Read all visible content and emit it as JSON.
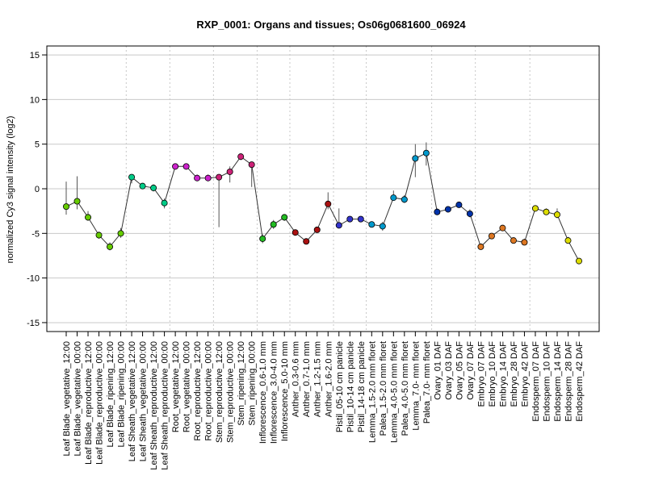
{
  "chart_data": {
    "type": "line",
    "title": "RXP_0001: Organs and tissues; Os06g0681600_06924",
    "xlabel": "",
    "ylabel": "normalized Cy3 signal intensity (log2)",
    "ylim": [
      -16,
      16
    ],
    "yticks": [
      -15,
      -10,
      -5,
      0,
      5,
      10,
      15
    ],
    "grid": "horizontal lines at y ticks; dotted vertical separators between tissue groups",
    "categories": [
      "Leaf Blade_vegetative_12:00",
      "Leaf Blade_vegetative_00:00",
      "Leaf Blade_reproductive_12:00",
      "Leaf Blade_reproductive_00:00",
      "Leaf Blade_ripening_12:00",
      "Leaf Blade_ripening_00:00",
      "Leaf Sheath_vegetative_12:00",
      "Leaf Sheath_vegetative_00:00",
      "Leaf Sheath_reproductive_12:00",
      "Leaf Sheath_reproductive_00:00",
      "Root_vegetative_12:00",
      "Root_vegetative_00:00",
      "Root_reproductive_12:00",
      "Root_reproductive_00:00",
      "Stem_reproductive_12:00",
      "Stem_reproductive_00:00",
      "Stem_ripening_12:00",
      "Stem_ripening_00:00",
      "Inflorescence_0.6-1.0 mm",
      "Inflorescence_3.0-4.0 mm",
      "Inflorescence_5.0-10 mm",
      "Anther_0.3-0.6 mm",
      "Anther_0.7-1.0 mm",
      "Anther_1.2-1.5 mm",
      "Anther_1.6-2.0 mm",
      "Pistil_05-10 cm panicle",
      "Pistil_10-14 cm panicle",
      "Pistil_14-18 cm panicle",
      "Lemma_1.5-2.0 mm floret",
      "Palea_1.5-2.0 mm floret",
      "Lemma_4.0-5.0 mm floret",
      "Palea_4.0-5.0 mm floret",
      "Lemma_7.0- mm floret",
      "Palea_7.0- mm floret",
      "Ovary_01 DAF",
      "Ovary_03 DAF",
      "Ovary_05 DAF",
      "Ovary_07 DAF",
      "Embryo_07 DAF",
      "Embryo_10 DAF",
      "Embryo_14 DAF",
      "Embryo_28 DAF",
      "Embryo_42 DAF",
      "Endosperm_07 DAF",
      "Endosperm_10 DAF",
      "Endosperm_14 DAF",
      "Endosperm_28 DAF",
      "Endosperm_42 DAF"
    ],
    "values": [
      -2.0,
      -1.4,
      -3.2,
      -5.2,
      -6.5,
      -5.0,
      1.3,
      0.3,
      0.1,
      -1.6,
      2.5,
      2.5,
      1.2,
      1.2,
      1.3,
      1.9,
      3.6,
      2.7,
      -5.6,
      -4.0,
      -3.2,
      -4.9,
      -5.9,
      -4.6,
      -1.7,
      -4.1,
      -3.4,
      -3.4,
      -4.0,
      -4.2,
      -1.0,
      -1.2,
      3.4,
      4.0,
      -2.6,
      -2.3,
      -1.8,
      -2.8,
      -6.5,
      -5.3,
      -4.4,
      -5.8,
      -6.0,
      -2.2,
      -2.6,
      -2.9,
      -5.8,
      -8.1
    ],
    "error_low": [
      -2.9,
      -2.3,
      -3.6,
      -5.6,
      -6.9,
      -5.5,
      0.6,
      0.1,
      -0.3,
      -2.2,
      2.2,
      2.2,
      0.9,
      0.9,
      -4.3,
      0.7,
      3.2,
      0.2,
      -6.1,
      -4.5,
      -3.6,
      -5.2,
      -6.2,
      -4.9,
      -2.3,
      -4.4,
      -3.6,
      -3.6,
      -4.3,
      -4.7,
      -1.3,
      -1.6,
      1.3,
      2.6,
      -2.9,
      -2.5,
      -2.0,
      -3.2,
      -6.7,
      -5.6,
      -4.6,
      -6.0,
      -6.3,
      -2.4,
      -2.9,
      -3.3,
      -6.1,
      -8.3
    ],
    "error_high": [
      0.8,
      1.4,
      -2.5,
      -4.8,
      -6.0,
      -4.4,
      1.6,
      0.5,
      0.5,
      -1.1,
      2.8,
      2.8,
      1.6,
      1.6,
      1.6,
      2.5,
      3.9,
      3.0,
      -5.1,
      -3.5,
      -2.9,
      -4.6,
      -5.6,
      -4.3,
      -0.4,
      -2.2,
      -3.1,
      -3.1,
      -3.7,
      -3.7,
      -0.2,
      -0.7,
      5.0,
      5.2,
      -2.2,
      -2.0,
      -1.5,
      -2.3,
      -6.2,
      -5.0,
      -4.1,
      -5.5,
      -5.6,
      -1.9,
      -2.2,
      -2.2,
      -5.4,
      -7.8
    ],
    "colors": [
      "#66cc00",
      "#66cc00",
      "#66cc00",
      "#66cc00",
      "#66cc00",
      "#66cc00",
      "#00cc88",
      "#00cc88",
      "#00cc88",
      "#00cc88",
      "#cc22cc",
      "#cc22cc",
      "#cc22cc",
      "#cc22cc",
      "#cc2277",
      "#cc2277",
      "#cc2277",
      "#cc2277",
      "#22bb22",
      "#22bb22",
      "#22bb22",
      "#aa1111",
      "#aa1111",
      "#aa1111",
      "#aa1111",
      "#3333cc",
      "#3333cc",
      "#3333cc",
      "#0099cc",
      "#0099cc",
      "#0099cc",
      "#0099cc",
      "#0099cc",
      "#0099cc",
      "#0033aa",
      "#0033aa",
      "#0033aa",
      "#0033aa",
      "#dd7722",
      "#dd7722",
      "#dd7722",
      "#dd7722",
      "#dd7722",
      "#dddd00",
      "#dddd00",
      "#dddd00",
      "#dddd00",
      "#dddd00"
    ],
    "group_separators_after_index": [
      5,
      9,
      13,
      17,
      20,
      24,
      27,
      33,
      37,
      42
    ]
  }
}
